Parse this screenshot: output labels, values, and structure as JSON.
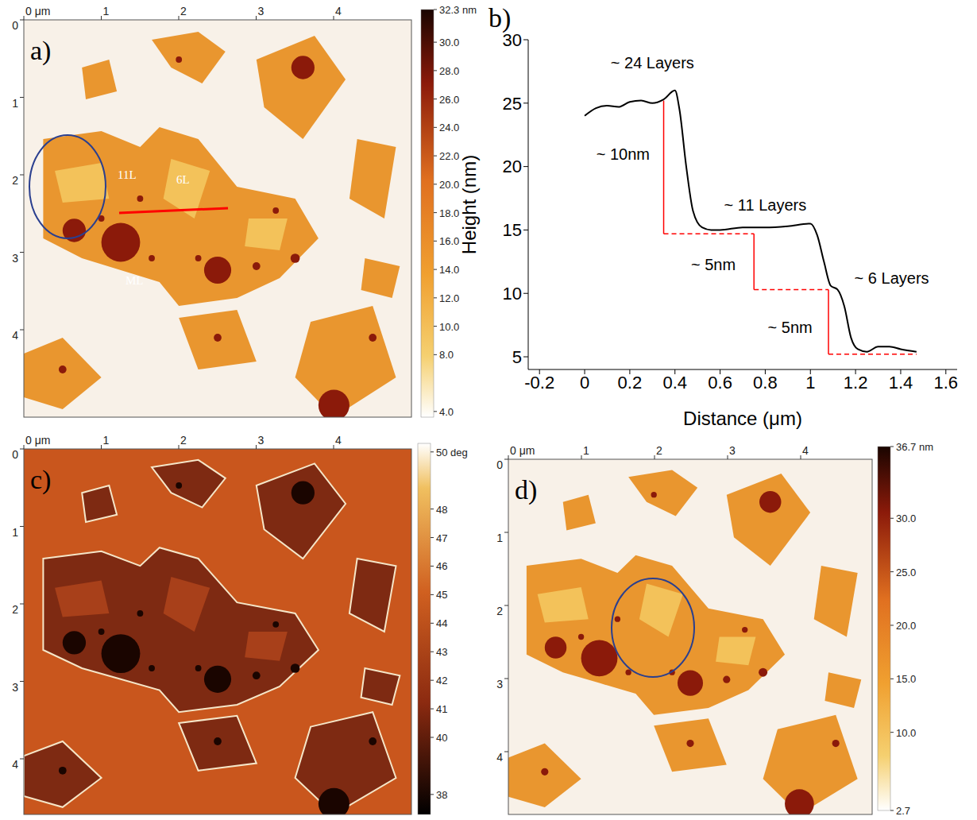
{
  "chart_data": {
    "type": "line",
    "panel_label": "b)",
    "x_label": "Distance (μm)",
    "y_label": "Height (nm)",
    "color": "#000000",
    "x": [
      0,
      0.05,
      0.1,
      0.15,
      0.2,
      0.25,
      0.3,
      0.35,
      0.4,
      0.42,
      0.45,
      0.48,
      0.52,
      0.56,
      0.6,
      0.7,
      0.8,
      0.9,
      1.0,
      1.03,
      1.06,
      1.09,
      1.12,
      1.15,
      1.18,
      1.21,
      1.25,
      1.3,
      1.35,
      1.4,
      1.47
    ],
    "values": [
      24,
      24.6,
      24.8,
      24.7,
      25.1,
      25.2,
      25,
      25.3,
      26,
      24.5,
      20,
      16.5,
      15.2,
      15,
      15,
      15.2,
      15.2,
      15.3,
      15.5,
      14.6,
      12.5,
      10.6,
      10.3,
      9,
      6.5,
      5.6,
      5.4,
      5.8,
      5.8,
      5.6,
      5.4
    ],
    "xlim": [
      -0.25,
      1.65
    ],
    "xticks": [
      -0.2,
      0,
      0.2,
      0.4,
      0.6,
      0.8,
      1,
      1.2,
      1.4,
      1.6
    ],
    "ylim": [
      4,
      30
    ],
    "yticks": [
      5,
      10,
      15,
      20,
      25,
      30
    ],
    "grid": false,
    "layer_labels": [
      "~ 24 Layers",
      "~ 11 Layers",
      "~ 6 Layers"
    ],
    "steps": [
      {
        "x": 0.35,
        "top": 25.2,
        "bottom": 14.7,
        "dash_to": 0.75,
        "label": "~ 10nm"
      },
      {
        "x": 0.75,
        "top": 14.7,
        "bottom": 10.3,
        "dash_to": 1.08,
        "label": "~ 5nm"
      },
      {
        "x": 1.08,
        "top": 10.3,
        "bottom": 5.2,
        "dash_to": 1.47,
        "label": "~ 5nm"
      }
    ],
    "step_color": "#ff0000"
  },
  "images": [
    {
      "panel_label": "a)",
      "x_ticks": [
        {
          "value": 0,
          "label": "0 μm"
        },
        1,
        2,
        3,
        4
      ],
      "y_ticks": [
        0,
        1,
        2,
        3,
        4
      ],
      "colorbar": {
        "range": [
          3.6,
          32.3
        ],
        "ticks": [
          {
            "value": 32.3,
            "label": "32.3 nm"
          },
          {
            "value": 30,
            "label": "30.0"
          },
          {
            "value": 28,
            "label": "28.0"
          },
          {
            "value": 26,
            "label": "26.0"
          },
          {
            "value": 24,
            "label": "24.0"
          },
          {
            "value": 22,
            "label": "22.0"
          },
          {
            "value": 20,
            "label": "20.0"
          },
          {
            "value": 18,
            "label": "18.0"
          },
          {
            "value": 16,
            "label": "16.0"
          },
          {
            "value": 14,
            "label": "14.0"
          },
          {
            "value": 12,
            "label": "12.0"
          },
          {
            "value": 10,
            "label": "10.0"
          },
          {
            "value": 8,
            "label": "8.0"
          },
          {
            "value": 4,
            "label": "4.0"
          }
        ]
      },
      "annotations": [
        "11L",
        "6L",
        "ML"
      ]
    },
    {
      "panel_label": "c)",
      "x_ticks": [
        {
          "value": 0,
          "label": "0 μm"
        },
        1,
        2,
        3,
        4
      ],
      "y_ticks": [
        0,
        1,
        2,
        3,
        4
      ],
      "colorbar": {
        "range": [
          37.3,
          50.3
        ],
        "ticks": [
          {
            "value": 50,
            "label": "50 deg"
          },
          48,
          47,
          46,
          45,
          44,
          43,
          42,
          41,
          40,
          38
        ]
      },
      "annotations": []
    },
    {
      "panel_label": "d)",
      "x_ticks": [
        {
          "value": 0,
          "label": "0 μm"
        },
        1,
        2,
        3,
        4
      ],
      "y_ticks": [
        0,
        1,
        2,
        3,
        4
      ],
      "colorbar": {
        "range": [
          2.7,
          36.7
        ],
        "ticks": [
          {
            "value": 36.7,
            "label": "36.7 nm"
          },
          {
            "value": 30,
            "label": "30.0"
          },
          {
            "value": 25,
            "label": "25.0"
          },
          {
            "value": 20,
            "label": "20.0"
          },
          {
            "value": 15,
            "label": "15.0"
          },
          {
            "value": 10,
            "label": "10.0"
          },
          {
            "value": 2.7,
            "label": "2.7"
          }
        ]
      },
      "annotations": []
    }
  ]
}
